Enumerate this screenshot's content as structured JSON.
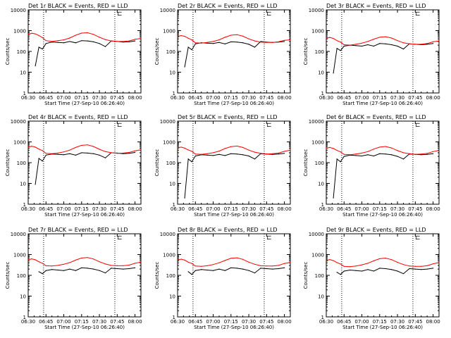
{
  "colors": {
    "events": "#000000",
    "lld": "#ff0000",
    "background": "#ffffff",
    "frame": "#000000"
  },
  "common": {
    "type": "line",
    "xlabel": "Start Time (27-Sep-10 06:26:40)",
    "ylabel": "Counts/sec",
    "x_ticks": [
      "06:30",
      "06:45",
      "07:00",
      "07:15",
      "07:30",
      "07:45",
      "08:00"
    ],
    "y_ticks": [
      "1",
      "10",
      "100",
      "1000",
      "10000"
    ],
    "xlim_minutes_since_0630": [
      0,
      95
    ],
    "ylim": [
      1,
      10000
    ],
    "y_scale": "log",
    "vlines_dotted": [
      "06:43",
      "07:43"
    ],
    "marker_label": "⊏",
    "series_names": [
      "Events",
      "LLD"
    ]
  },
  "chart_data": [
    {
      "title": "Det 1r BLACK = Events, RED = LLD",
      "x": [
        "06:30",
        "06:33",
        "06:36",
        "06:39",
        "06:42",
        "06:45",
        "06:50",
        "06:55",
        "07:00",
        "07:05",
        "07:10",
        "07:15",
        "07:20",
        "07:25",
        "07:30",
        "07:35",
        "07:40",
        "07:45",
        "07:50",
        "07:55",
        "08:00",
        "08:05"
      ],
      "series": [
        {
          "name": "Events",
          "values": [
            null,
            null,
            20,
            160,
            130,
            240,
            280,
            270,
            260,
            300,
            260,
            330,
            320,
            290,
            240,
            170,
            320,
            300,
            280,
            290,
            320,
            null
          ]
        },
        {
          "name": "LLD",
          "values": [
            650,
            750,
            700,
            580,
            460,
            330,
            300,
            330,
            360,
            440,
            600,
            760,
            790,
            660,
            480,
            370,
            320,
            300,
            300,
            320,
            380,
            420
          ]
        }
      ]
    },
    {
      "title": "Det 2r BLACK = Events, RED = LLD",
      "x": [
        "06:30",
        "06:33",
        "06:36",
        "06:39",
        "06:42",
        "06:45",
        "06:50",
        "06:55",
        "07:00",
        "07:05",
        "07:10",
        "07:15",
        "07:20",
        "07:25",
        "07:30",
        "07:35",
        "07:40",
        "07:45",
        "07:50",
        "07:55",
        "08:00",
        "08:05"
      ],
      "series": [
        {
          "name": "Events",
          "values": [
            null,
            null,
            18,
            160,
            120,
            230,
            260,
            250,
            240,
            270,
            230,
            290,
            280,
            260,
            220,
            160,
            300,
            280,
            270,
            280,
            300,
            null
          ]
        },
        {
          "name": "LLD",
          "values": [
            520,
            580,
            530,
            430,
            360,
            260,
            250,
            270,
            300,
            360,
            480,
            600,
            640,
            540,
            400,
            320,
            280,
            270,
            270,
            290,
            340,
            360
          ]
        }
      ]
    },
    {
      "title": "Det 3r BLACK = Events, RED = LLD",
      "x": [
        "06:30",
        "06:33",
        "06:36",
        "06:39",
        "06:42",
        "06:45",
        "06:50",
        "06:55",
        "07:00",
        "07:05",
        "07:10",
        "07:15",
        "07:20",
        "07:25",
        "07:30",
        "07:35",
        "07:40",
        "07:45",
        "07:50",
        "07:55",
        "08:00",
        "08:05"
      ],
      "series": [
        {
          "name": "Events",
          "values": [
            null,
            null,
            9,
            140,
            110,
            180,
            200,
            190,
            180,
            210,
            180,
            240,
            230,
            210,
            180,
            130,
            230,
            220,
            210,
            220,
            240,
            null
          ]
        },
        {
          "name": "LLD",
          "values": [
            430,
            470,
            420,
            330,
            280,
            210,
            200,
            220,
            250,
            300,
            390,
            480,
            510,
            440,
            330,
            260,
            230,
            220,
            220,
            240,
            290,
            320
          ]
        }
      ]
    },
    {
      "title": "Det 4r BLACK = Events, RED = LLD",
      "x": [
        "06:30",
        "06:33",
        "06:36",
        "06:39",
        "06:42",
        "06:45",
        "06:50",
        "06:55",
        "07:00",
        "07:05",
        "07:10",
        "07:15",
        "07:20",
        "07:25",
        "07:30",
        "07:35",
        "07:40",
        "07:45",
        "07:50",
        "07:55",
        "08:00",
        "08:05"
      ],
      "series": [
        {
          "name": "Events",
          "values": [
            null,
            null,
            9,
            160,
            120,
            230,
            260,
            250,
            240,
            270,
            230,
            300,
            290,
            270,
            230,
            170,
            300,
            290,
            270,
            280,
            310,
            null
          ]
        },
        {
          "name": "LLD",
          "values": [
            560,
            620,
            560,
            450,
            380,
            280,
            270,
            290,
            330,
            400,
            540,
            680,
            720,
            600,
            440,
            340,
            300,
            280,
            290,
            310,
            370,
            420
          ]
        }
      ]
    },
    {
      "title": "Det 5r BLACK = Events, RED = LLD",
      "x": [
        "06:30",
        "06:33",
        "06:36",
        "06:39",
        "06:42",
        "06:45",
        "06:50",
        "06:55",
        "07:00",
        "07:05",
        "07:10",
        "07:15",
        "07:20",
        "07:25",
        "07:30",
        "07:35",
        "07:40",
        "07:45",
        "07:50",
        "07:55",
        "08:00",
        "08:05"
      ],
      "series": [
        {
          "name": "Events",
          "values": [
            null,
            null,
            2,
            150,
            110,
            210,
            240,
            230,
            220,
            250,
            220,
            270,
            260,
            240,
            210,
            150,
            270,
            260,
            250,
            260,
            280,
            null
          ]
        },
        {
          "name": "LLD",
          "values": [
            520,
            560,
            500,
            410,
            350,
            260,
            250,
            270,
            300,
            360,
            480,
            590,
            630,
            540,
            400,
            320,
            280,
            260,
            270,
            290,
            350,
            400
          ]
        }
      ]
    },
    {
      "title": "Det 6r BLACK = Events, RED = LLD",
      "x": [
        "06:30",
        "06:33",
        "06:36",
        "06:39",
        "06:42",
        "06:45",
        "06:50",
        "06:55",
        "07:00",
        "07:05",
        "07:10",
        "07:15",
        "07:20",
        "07:25",
        "07:30",
        "07:35",
        "07:40",
        "07:45",
        "07:50",
        "07:55",
        "08:00",
        "08:05"
      ],
      "series": [
        {
          "name": "Events",
          "values": [
            null,
            null,
            2,
            150,
            110,
            200,
            230,
            220,
            210,
            240,
            210,
            270,
            260,
            240,
            200,
            150,
            260,
            250,
            240,
            250,
            270,
            null
          ]
        },
        {
          "name": "LLD",
          "values": [
            500,
            540,
            480,
            390,
            330,
            250,
            240,
            260,
            290,
            340,
            450,
            560,
            600,
            510,
            380,
            300,
            270,
            250,
            260,
            280,
            340,
            390
          ]
        }
      ]
    },
    {
      "title": "Det 7r BLACK = Events, RED = LLD",
      "x": [
        "06:30",
        "06:33",
        "06:36",
        "06:39",
        "06:42",
        "06:45",
        "06:50",
        "06:55",
        "07:00",
        "07:05",
        "07:10",
        "07:15",
        "07:20",
        "07:25",
        "07:30",
        "07:35",
        "07:40",
        "07:45",
        "07:50",
        "07:55",
        "08:00",
        "08:05"
      ],
      "series": [
        {
          "name": "Events",
          "values": [
            null,
            null,
            null,
            150,
            120,
            170,
            190,
            180,
            170,
            200,
            170,
            230,
            220,
            200,
            170,
            130,
            220,
            210,
            200,
            210,
            230,
            null
          ]
        },
        {
          "name": "LLD",
          "values": [
            560,
            620,
            560,
            450,
            380,
            290,
            280,
            300,
            340,
            410,
            540,
            680,
            720,
            610,
            450,
            350,
            300,
            290,
            290,
            310,
            380,
            430
          ]
        }
      ]
    },
    {
      "title": "Det 8r BLACK = Events, RED = LLD",
      "x": [
        "06:30",
        "06:33",
        "06:36",
        "06:39",
        "06:42",
        "06:45",
        "06:50",
        "06:55",
        "07:00",
        "07:05",
        "07:10",
        "07:15",
        "07:20",
        "07:25",
        "07:30",
        "07:35",
        "07:40",
        "07:45",
        "07:50",
        "07:55",
        "08:00",
        "08:05"
      ],
      "series": [
        {
          "name": "Events",
          "values": [
            null,
            null,
            null,
            150,
            110,
            170,
            190,
            180,
            170,
            200,
            170,
            230,
            220,
            200,
            170,
            130,
            220,
            210,
            200,
            210,
            230,
            null
          ]
        },
        {
          "name": "LLD",
          "values": [
            540,
            600,
            540,
            430,
            370,
            280,
            270,
            290,
            330,
            400,
            520,
            660,
            700,
            590,
            430,
            340,
            290,
            280,
            280,
            300,
            370,
            420
          ]
        }
      ]
    },
    {
      "title": "Det 9r BLACK = Events, RED = LLD",
      "x": [
        "06:30",
        "06:33",
        "06:36",
        "06:39",
        "06:42",
        "06:45",
        "06:50",
        "06:55",
        "07:00",
        "07:05",
        "07:10",
        "07:15",
        "07:20",
        "07:25",
        "07:30",
        "07:35",
        "07:40",
        "07:45",
        "07:50",
        "07:55",
        "08:00",
        "08:05"
      ],
      "series": [
        {
          "name": "Events",
          "values": [
            null,
            null,
            null,
            140,
            110,
            160,
            180,
            170,
            160,
            190,
            160,
            220,
            210,
            190,
            160,
            120,
            210,
            200,
            190,
            200,
            220,
            null
          ]
        },
        {
          "name": "LLD",
          "values": [
            520,
            570,
            510,
            410,
            350,
            270,
            260,
            280,
            320,
            380,
            500,
            630,
            670,
            570,
            420,
            330,
            280,
            270,
            270,
            290,
            360,
            410
          ]
        }
      ]
    }
  ]
}
